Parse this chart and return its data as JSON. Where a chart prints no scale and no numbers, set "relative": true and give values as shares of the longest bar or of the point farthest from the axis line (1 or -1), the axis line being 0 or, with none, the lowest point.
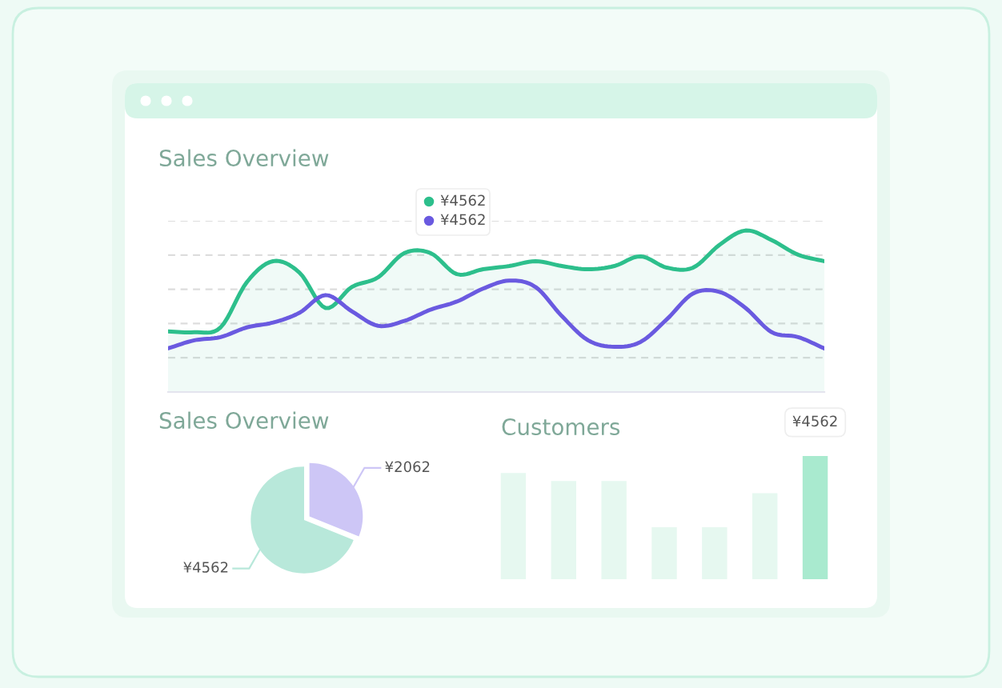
{
  "chart_data": [
    {
      "type": "line",
      "title": "Sales Overview",
      "relative": true,
      "grid": "y",
      "categories": [
        null,
        null,
        null,
        null,
        null,
        null,
        null,
        null,
        null,
        null,
        null,
        null,
        null,
        null,
        null,
        null,
        null,
        null,
        null,
        null,
        null,
        null,
        null,
        null,
        null,
        null
      ],
      "series": [
        {
          "type": "area",
          "color": "#2dbf8c",
          "values": [
            0.375,
            0.37,
            0.4,
            0.68,
            0.81,
            0.74,
            0.52,
            0.65,
            0.71,
            0.86,
            0.86,
            0.73,
            0.76,
            0.78,
            0.81,
            0.78,
            0.76,
            0.78,
            0.84,
            0.77,
            0.77,
            0.91,
            1.0,
            0.94,
            0.85,
            0.81
          ]
        },
        {
          "type": "line",
          "color": "#6a5ae0",
          "values": [
            0.27,
            0.32,
            0.34,
            0.4,
            0.43,
            0.49,
            0.6,
            0.5,
            0.41,
            0.44,
            0.51,
            0.56,
            0.64,
            0.69,
            0.65,
            0.47,
            0.32,
            0.28,
            0.31,
            0.45,
            0.61,
            0.62,
            0.52,
            0.37,
            0.34,
            0.27
          ]
        }
      ],
      "annotations": [
        "¥4562",
        "¥4562"
      ]
    },
    {
      "type": "pie",
      "title": "Sales Overview",
      "categories": [
        null,
        null
      ],
      "values": [
        4562,
        2062
      ],
      "colors": [
        "#b8e8da",
        "#cdc6f6"
      ],
      "value_labels": [
        "¥4562",
        "¥2062"
      ]
    },
    {
      "type": "bar",
      "title": "Customers",
      "categories": [
        null,
        null,
        null,
        null,
        null,
        null,
        null
      ],
      "values": [
        3932,
        3636,
        3636,
        1925,
        1925,
        3184,
        4562
      ],
      "colors": [
        "#e6f8f0",
        "#e6f8f0",
        "#e6f8f0",
        "#e6f8f0",
        "#e6f8f0",
        "#e6f8f0",
        "#a9eacf"
      ],
      "value_labels": [
        null,
        null,
        null,
        null,
        null,
        null,
        "¥4562"
      ]
    }
  ]
}
